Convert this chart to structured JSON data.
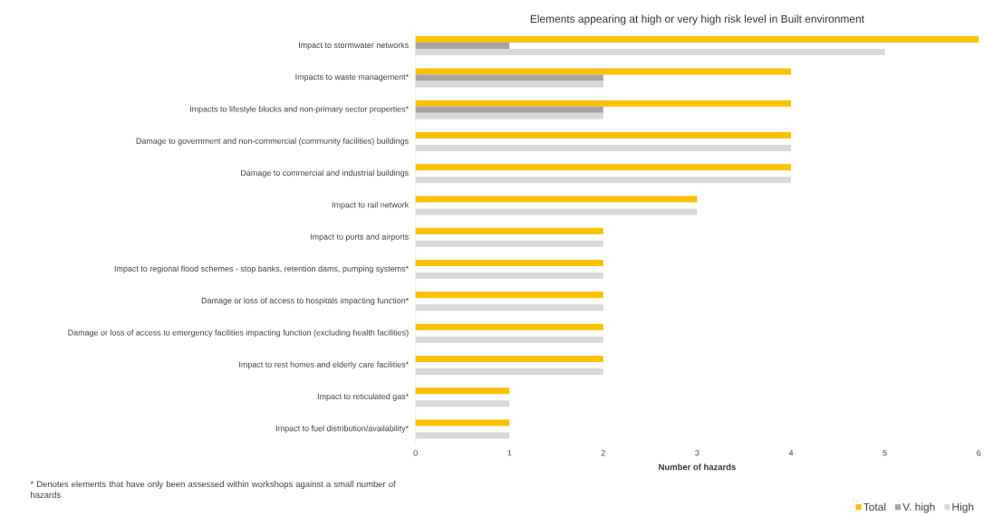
{
  "chart_data": {
    "type": "bar",
    "orientation": "horizontal",
    "title": "Elements appearing at high or very high risk level in Built environment",
    "xlabel": "Number of hazards",
    "categories": [
      "Impact to stormwater networks",
      "Impacts to waste management*",
      "Impacts to lifestyle blocks and non-primary sector properties*",
      "Damage to government and non-commercial (community facilities) buildings",
      "Damage to commercial and industrial buildings",
      "Impact to rail network",
      "Impact to ports and airports",
      "Impact to regional flood schemes - stop banks, retention dams, pumping systems*",
      "Damage or loss of access to hospitals impacting function*",
      "Damage or loss of access to emergency facilities impacting function (excluding health facilities)",
      "Impact to rest homes and elderly care facilities*",
      "Impact to reticulated gas*",
      "Impact to fuel distribution/availability*"
    ],
    "series": [
      {
        "name": "Total",
        "color": "#ffc000",
        "values": [
          6,
          4,
          4,
          4,
          4,
          3,
          2,
          2,
          2,
          2,
          2,
          1,
          1
        ]
      },
      {
        "name": "V. high",
        "color": "#a5a5a5",
        "values": [
          1,
          2,
          2,
          0,
          0,
          0,
          0,
          0,
          0,
          0,
          0,
          0,
          0
        ]
      },
      {
        "name": "High",
        "color": "#d9d9d9",
        "values": [
          5,
          2,
          2,
          4,
          4,
          3,
          2,
          2,
          2,
          2,
          2,
          1,
          1
        ]
      }
    ],
    "xlim": [
      0,
      6
    ],
    "xticks": [
      0,
      1,
      2,
      3,
      4,
      5,
      6
    ],
    "legend": "bottom right",
    "grid": false,
    "annotations": [
      "* Denotes elements that have only been assessed within workshops against a small number of hazards"
    ]
  }
}
